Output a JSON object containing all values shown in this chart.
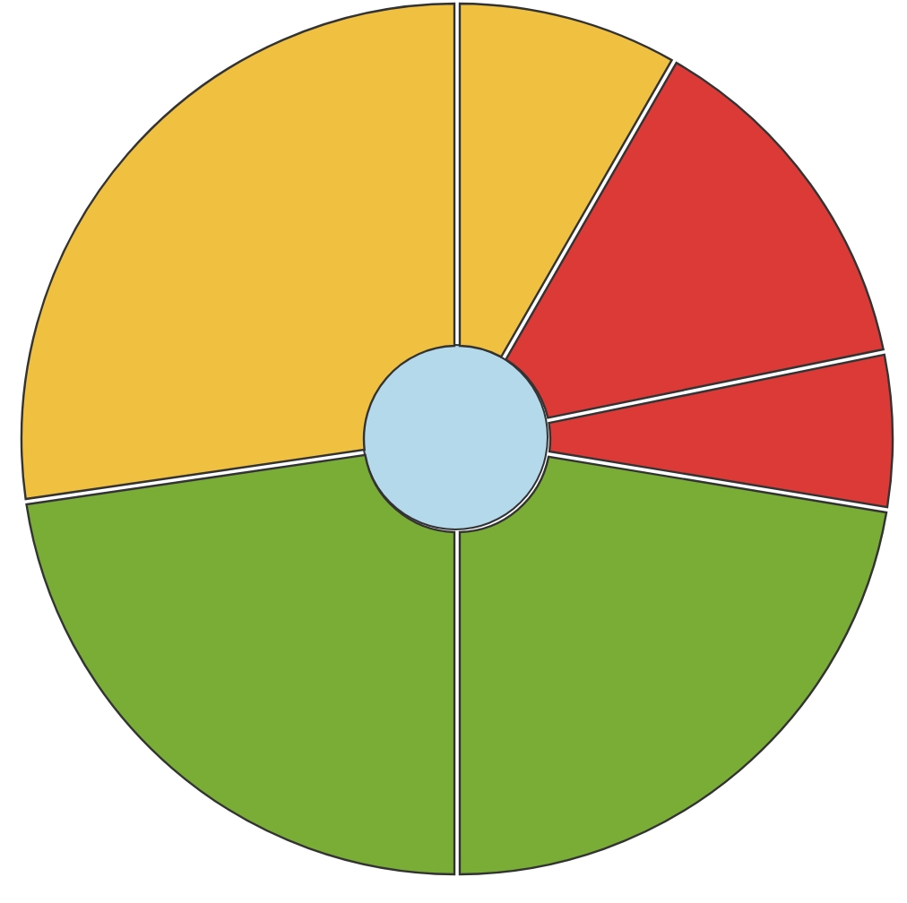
{
  "chart_data": {
    "type": "donut",
    "categories": [
      null,
      null,
      null,
      null,
      null,
      null
    ],
    "values": [
      8.3,
      13.5,
      5.8,
      22.4,
      22.7,
      27.3
    ],
    "colors": [
      "#f0c040",
      "#dc3a36",
      "#dc3a36",
      "#7aad35",
      "#7aad35",
      "#f0c040"
    ]
  }
}
